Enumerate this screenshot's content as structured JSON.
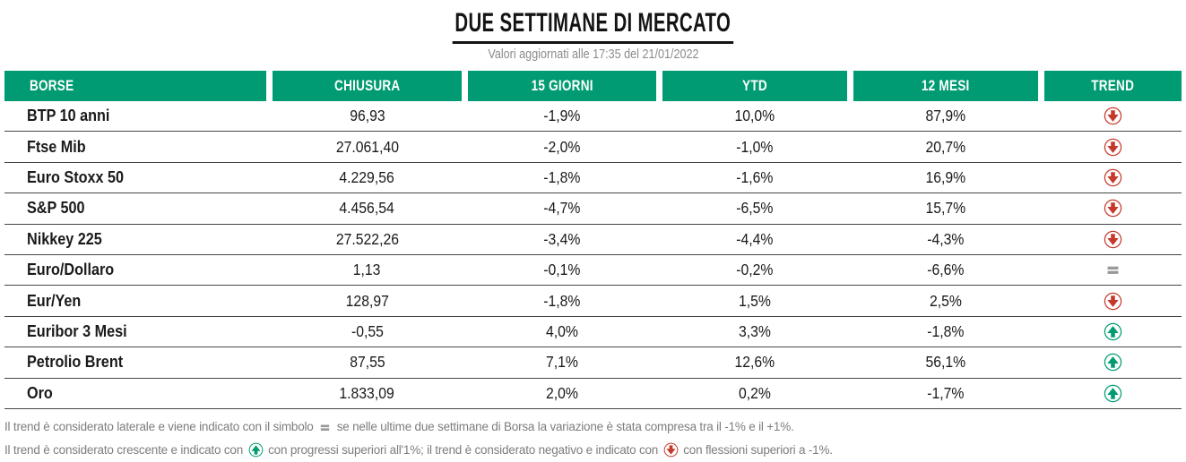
{
  "header": {
    "title": "DUE SETTIMANE DI MERCATO",
    "subtitle": "Valori aggiornati alle 17:35 del 21/01/2022"
  },
  "colors": {
    "header_green": "#009B72",
    "trend_up_green": "#009B72",
    "trend_down_red": "#C5392B",
    "trend_equal_gray": "#999999"
  },
  "chart_data": {
    "type": "table",
    "title": "DUE SETTIMANE DI MERCATO",
    "columns": [
      "BORSE",
      "CHIUSURA",
      "15 GIORNI",
      "YTD",
      "12 MESI",
      "TREND"
    ],
    "rows": [
      {
        "borse": "BTP 10 anni",
        "chiusura": "96,93",
        "giorni15": "-1,9%",
        "ytd": "10,0%",
        "mesi12": "87,9%",
        "trend": "down"
      },
      {
        "borse": "Ftse Mib",
        "chiusura": "27.061,40",
        "giorni15": "-2,0%",
        "ytd": "-1,0%",
        "mesi12": "20,7%",
        "trend": "down"
      },
      {
        "borse": "Euro Stoxx 50",
        "chiusura": "4.229,56",
        "giorni15": "-1,8%",
        "ytd": "-1,6%",
        "mesi12": "16,9%",
        "trend": "down"
      },
      {
        "borse": "S&P 500",
        "chiusura": "4.456,54",
        "giorni15": "-4,7%",
        "ytd": "-6,5%",
        "mesi12": "15,7%",
        "trend": "down"
      },
      {
        "borse": "Nikkey 225",
        "chiusura": "27.522,26",
        "giorni15": "-3,4%",
        "ytd": "-4,4%",
        "mesi12": "-4,3%",
        "trend": "down"
      },
      {
        "borse": "Euro/Dollaro",
        "chiusura": "1,13",
        "giorni15": "-0,1%",
        "ytd": "-0,2%",
        "mesi12": "-6,6%",
        "trend": "equal"
      },
      {
        "borse": "Eur/Yen",
        "chiusura": "128,97",
        "giorni15": "-1,8%",
        "ytd": "1,5%",
        "mesi12": "2,5%",
        "trend": "down"
      },
      {
        "borse": "Euribor 3 Mesi",
        "chiusura": "-0,55",
        "giorni15": "4,0%",
        "ytd": "3,3%",
        "mesi12": "-1,8%",
        "trend": "up"
      },
      {
        "borse": "Petrolio Brent",
        "chiusura": "87,55",
        "giorni15": "7,1%",
        "ytd": "12,6%",
        "mesi12": "56,1%",
        "trend": "up"
      },
      {
        "borse": "Oro",
        "chiusura": "1.833,09",
        "giorni15": "2,0%",
        "ytd": "0,2%",
        "mesi12": "-1,7%",
        "trend": "up"
      }
    ]
  },
  "footnotes": [
    {
      "parts": [
        {
          "t": "Il trend è considerato laterale e viene indicato con il simbolo "
        },
        {
          "icon": "equal"
        },
        {
          "t": " se nelle ultime due settimane di Borsa la variazione è stata compresa tra il -1% e il +1%."
        }
      ]
    },
    {
      "parts": [
        {
          "t": "Il trend è considerato crescente e indicato con "
        },
        {
          "icon": "up"
        },
        {
          "t": " con progressi superiori all'1%; il trend è considerato negativo e indicato con "
        },
        {
          "icon": "down"
        },
        {
          "t": " con flessioni superiori a -1%."
        }
      ]
    }
  ]
}
